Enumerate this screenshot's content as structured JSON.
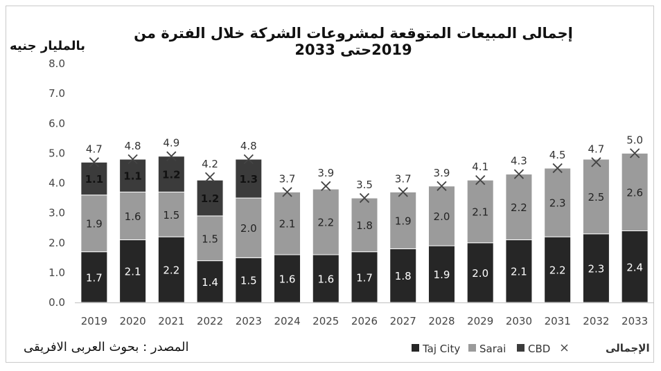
{
  "chart_data": {
    "type": "bar",
    "stacked": true,
    "title": "إجمالى المبيعات المتوقعة لمشروعات الشركة خلال الفترة من 2019حتى 2033",
    "ylabel": "بالمليار جنيه",
    "source": "المصدر : بحوث العربى الافريقى",
    "ylim": [
      0,
      8
    ],
    "yticks": [
      "0.0",
      "1.0",
      "2.0",
      "3.0",
      "4.0",
      "5.0",
      "6.0",
      "7.0",
      "8.0"
    ],
    "grid": false,
    "legend_position": "bottom-right",
    "categories": [
      "2019",
      "2020",
      "2021",
      "2022",
      "2023",
      "2024",
      "2025",
      "2026",
      "2027",
      "2028",
      "2029",
      "2030",
      "2031",
      "2032",
      "2033"
    ],
    "series": [
      {
        "name": "Taj City",
        "color": "#262626",
        "values": [
          1.7,
          2.1,
          2.2,
          1.4,
          1.5,
          1.6,
          1.6,
          1.7,
          1.8,
          1.9,
          2.0,
          2.1,
          2.2,
          2.3,
          2.4
        ]
      },
      {
        "name": "Sarai",
        "color": "#9b9b9b",
        "values": [
          1.9,
          1.6,
          1.5,
          1.5,
          2.0,
          2.1,
          2.2,
          1.8,
          1.9,
          2.0,
          2.1,
          2.2,
          2.3,
          2.5,
          2.6
        ]
      },
      {
        "name": "CBD",
        "color": "#3b3b3b",
        "values": [
          1.1,
          1.1,
          1.2,
          1.2,
          1.3,
          null,
          null,
          null,
          null,
          null,
          null,
          null,
          null,
          null,
          null
        ]
      }
    ],
    "total": {
      "name": "الإجمالى",
      "marker": "x",
      "values": [
        4.7,
        4.8,
        4.9,
        4.2,
        4.8,
        3.7,
        3.9,
        3.5,
        3.7,
        3.9,
        4.1,
        4.3,
        4.5,
        4.7,
        5.0
      ]
    },
    "total_labels": [
      "4.7",
      "4.8",
      "4.9",
      "4.2",
      "4.8",
      "3.7",
      "3.9",
      "3.5",
      "3.7",
      "3.9",
      "4.1",
      "4.3",
      "4.5",
      "4.7",
      "5.0"
    ]
  }
}
